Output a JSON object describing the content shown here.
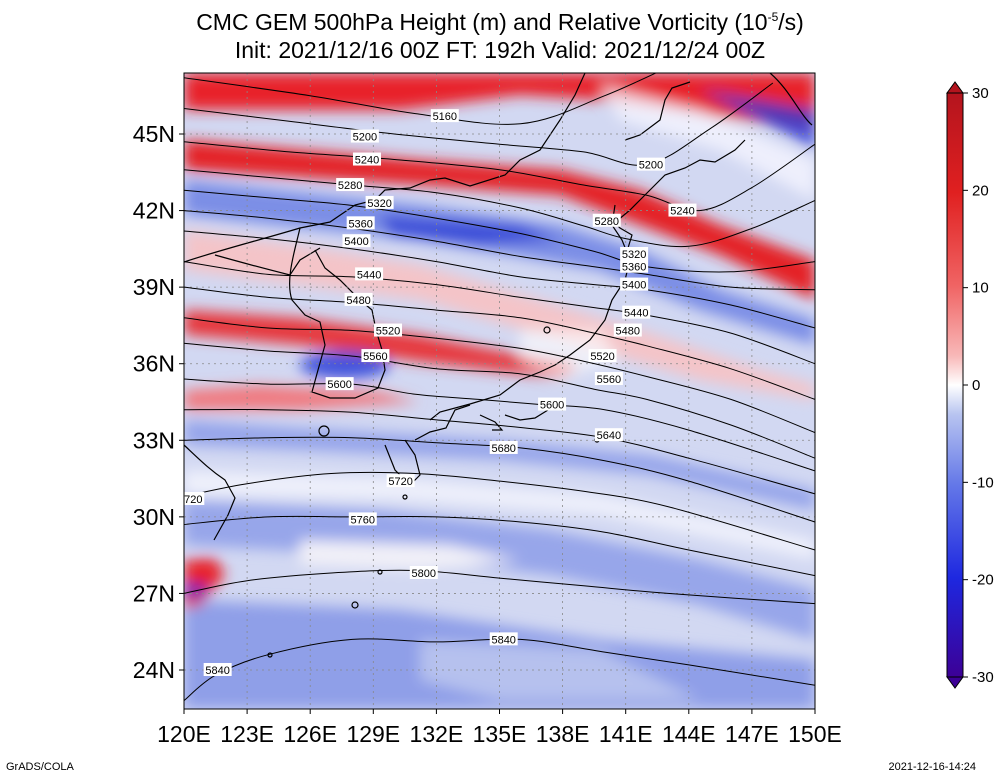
{
  "title": {
    "line1_prefix": "CMC GEM 500hPa Height (m) and Relative Vorticity (10",
    "line1_exp": "-5",
    "line1_suffix": "/s)",
    "line2": "Init: 2021/12/16 00Z  FT: 192h  Valid: 2021/12/24 00Z"
  },
  "lat_labels": [
    "45N",
    "42N",
    "39N",
    "36N",
    "33N",
    "30N",
    "27N",
    "24N"
  ],
  "lon_labels": [
    "120E",
    "123E",
    "126E",
    "129E",
    "132E",
    "135E",
    "138E",
    "141E",
    "144E",
    "147E",
    "150E"
  ],
  "colorbar": {
    "labels": [
      "30",
      "20",
      "10",
      "0",
      "-10",
      "-20",
      "-30"
    ],
    "colors": [
      "#b4141e",
      "#e02020",
      "#f06464",
      "#f8b8b8",
      "#ffffff",
      "#b8c4f0",
      "#6478e8",
      "#1e28e0",
      "#3c0096"
    ]
  },
  "contours": [
    {
      "label": "5160",
      "pts": [
        [
          120,
          47.2
        ],
        [
          126,
          46.5
        ],
        [
          131,
          45.8
        ],
        [
          136,
          45.4
        ],
        [
          140,
          46.5
        ],
        [
          144,
          48
        ]
      ],
      "lbl": [
        [
          132.4,
          45.7
        ]
      ]
    },
    {
      "label": "5200",
      "pts": [
        [
          120,
          46.0
        ],
        [
          125,
          45.5
        ],
        [
          130,
          45.0
        ],
        [
          135,
          44.6
        ],
        [
          139,
          44.3
        ],
        [
          142,
          43.8
        ],
        [
          145,
          45.2
        ],
        [
          148,
          47
        ]
      ],
      "lbl": [
        [
          128.6,
          44.9
        ],
        [
          142.2,
          43.8
        ]
      ]
    },
    {
      "label": "5240",
      "pts": [
        [
          120,
          44.7
        ],
        [
          125,
          44.3
        ],
        [
          130,
          44.0
        ],
        [
          135,
          43.6
        ],
        [
          139,
          43.0
        ],
        [
          142,
          42.6
        ],
        [
          144.5,
          42.0
        ],
        [
          147,
          42.9
        ],
        [
          150,
          44.6
        ]
      ],
      "lbl": [
        [
          128.7,
          44.0
        ],
        [
          143.7,
          42.0
        ]
      ]
    },
    {
      "label": "5280",
      "pts": [
        [
          120,
          43.6
        ],
        [
          124,
          43.3
        ],
        [
          128,
          43.0
        ],
        [
          132,
          42.7
        ],
        [
          136,
          42.1
        ],
        [
          139,
          41.4
        ],
        [
          141,
          40.9
        ],
        [
          144,
          40.6
        ],
        [
          147,
          41.3
        ],
        [
          150,
          42.4
        ]
      ],
      "lbl": [
        [
          127.9,
          43.0
        ],
        [
          140.1,
          41.6
        ]
      ]
    },
    {
      "label": "5320",
      "pts": [
        [
          120,
          42.8
        ],
        [
          124,
          42.5
        ],
        [
          128,
          42.2
        ],
        [
          132,
          41.7
        ],
        [
          136,
          41.1
        ],
        [
          139.5,
          40.4
        ],
        [
          142,
          39.8
        ],
        [
          146,
          39.6
        ],
        [
          150,
          40.0
        ]
      ],
      "lbl": [
        [
          129.3,
          42.3
        ],
        [
          141.4,
          40.3
        ]
      ]
    },
    {
      "label": "5360",
      "pts": [
        [
          120,
          42.0
        ],
        [
          124,
          41.7
        ],
        [
          128,
          41.3
        ],
        [
          132,
          40.8
        ],
        [
          136,
          40.2
        ],
        [
          139.5,
          39.8
        ],
        [
          142,
          39.5
        ],
        [
          146,
          39.0
        ],
        [
          150,
          38.9
        ]
      ],
      "lbl": [
        [
          128.4,
          41.5
        ],
        [
          141.4,
          39.8
        ]
      ]
    },
    {
      "label": "5400",
      "pts": [
        [
          120,
          41.2
        ],
        [
          124,
          40.9
        ],
        [
          128,
          40.5
        ],
        [
          132,
          40.0
        ],
        [
          136,
          39.4
        ],
        [
          139.5,
          39.1
        ],
        [
          142,
          38.9
        ],
        [
          146,
          38.3
        ],
        [
          150,
          37.4
        ]
      ],
      "lbl": [
        [
          128.2,
          40.8
        ],
        [
          141.4,
          39.1
        ]
      ]
    },
    {
      "label": "5440",
      "pts": [
        [
          120,
          40.0
        ],
        [
          124,
          39.5
        ],
        [
          128,
          39.4
        ],
        [
          132,
          39.1
        ],
        [
          136,
          38.6
        ],
        [
          139.5,
          38.2
        ],
        [
          142,
          37.9
        ],
        [
          146,
          37.2
        ],
        [
          150,
          36.0
        ]
      ],
      "lbl": [
        [
          128.8,
          39.5
        ],
        [
          141.5,
          38.0
        ]
      ]
    },
    {
      "label": "5480",
      "pts": [
        [
          120,
          39.0
        ],
        [
          124,
          38.6
        ],
        [
          128,
          38.4
        ],
        [
          132,
          38.1
        ],
        [
          136,
          37.8
        ],
        [
          139.5,
          37.2
        ],
        [
          142,
          36.7
        ],
        [
          146,
          35.8
        ],
        [
          150,
          34.6
        ]
      ],
      "lbl": [
        [
          128.3,
          38.5
        ],
        [
          141.1,
          37.3
        ]
      ]
    },
    {
      "label": "5520",
      "pts": [
        [
          120,
          37.8
        ],
        [
          124,
          37.4
        ],
        [
          128,
          37.3
        ],
        [
          132,
          37.0
        ],
        [
          136,
          36.6
        ],
        [
          139,
          36.1
        ],
        [
          142,
          35.5
        ],
        [
          146,
          34.6
        ],
        [
          150,
          33.3
        ]
      ],
      "lbl": [
        [
          129.7,
          37.3
        ],
        [
          139.9,
          36.3
        ]
      ]
    },
    {
      "label": "5560",
      "pts": [
        [
          120,
          36.8
        ],
        [
          124,
          36.5
        ],
        [
          128,
          36.3
        ],
        [
          132,
          35.8
        ],
        [
          136,
          35.6
        ],
        [
          139.5,
          35.0
        ],
        [
          142,
          34.6
        ],
        [
          146,
          33.6
        ],
        [
          150,
          32.3
        ]
      ],
      "lbl": [
        [
          129.1,
          36.3
        ],
        [
          140.2,
          35.4
        ]
      ]
    },
    {
      "label": "5600",
      "pts": [
        [
          120,
          35.4
        ],
        [
          124,
          35.2
        ],
        [
          128,
          35.2
        ],
        [
          131,
          34.8
        ],
        [
          134,
          34.6
        ],
        [
          137,
          34.4
        ],
        [
          140,
          34.2
        ],
        [
          144,
          33.4
        ],
        [
          150,
          31.8
        ]
      ],
      "lbl": [
        [
          127.4,
          35.2
        ],
        [
          137.5,
          34.4
        ]
      ]
    },
    {
      "label": "5640",
      "pts": [
        [
          120,
          34.2
        ],
        [
          124,
          34.2
        ],
        [
          128,
          34.1
        ],
        [
          132,
          33.8
        ],
        [
          136,
          33.5
        ],
        [
          140,
          33.1
        ],
        [
          144,
          32.3
        ],
        [
          150,
          30.9
        ]
      ],
      "lbl": [
        [
          140.2,
          33.2
        ]
      ]
    },
    {
      "label": "5680",
      "pts": [
        [
          120,
          33.0
        ],
        [
          124,
          33.1
        ],
        [
          128,
          33.1
        ],
        [
          132,
          32.9
        ],
        [
          136,
          32.7
        ],
        [
          140,
          32.2
        ],
        [
          144,
          31.4
        ],
        [
          150,
          29.8
        ]
      ],
      "lbl": [
        [
          135.2,
          32.7
        ]
      ]
    },
    {
      "label": "5720",
      "pts": [
        [
          120,
          30.8
        ],
        [
          123,
          31.3
        ],
        [
          127,
          31.7
        ],
        [
          131,
          31.7
        ],
        [
          135,
          31.4
        ],
        [
          139,
          31.0
        ],
        [
          143,
          30.4
        ],
        [
          150,
          28.7
        ]
      ],
      "lbl": [
        [
          120.3,
          30.7
        ],
        [
          130.3,
          31.4
        ]
      ]
    },
    {
      "label": "5760",
      "pts": [
        [
          120,
          29.7
        ],
        [
          124,
          30.0
        ],
        [
          128,
          30.0
        ],
        [
          132,
          30.0
        ],
        [
          136,
          29.8
        ],
        [
          140,
          29.4
        ],
        [
          144,
          28.7
        ],
        [
          150,
          27.7
        ]
      ],
      "lbl": [
        [
          128.5,
          29.9
        ]
      ]
    },
    {
      "label": "5800",
      "pts": [
        [
          120,
          27.0
        ],
        [
          123,
          27.5
        ],
        [
          127,
          27.8
        ],
        [
          131,
          27.9
        ],
        [
          135,
          27.6
        ],
        [
          139,
          27.3
        ],
        [
          143,
          27.0
        ],
        [
          150,
          26.6
        ]
      ],
      "lbl": [
        [
          131.4,
          27.8
        ]
      ]
    },
    {
      "label": "5840",
      "pts": [
        [
          120,
          22.8
        ],
        [
          121.5,
          23.8
        ],
        [
          124,
          24.6
        ],
        [
          128,
          25.2
        ],
        [
          132,
          25.1
        ],
        [
          136,
          25.2
        ],
        [
          140,
          24.7
        ],
        [
          144,
          24.2
        ],
        [
          150,
          23.4
        ]
      ],
      "lbl": [
        [
          121.6,
          24.0
        ],
        [
          135.2,
          25.2
        ]
      ]
    }
  ],
  "footer": {
    "credit": "GrADS/COLA",
    "timestamp": "2021-12-16-14:24"
  }
}
